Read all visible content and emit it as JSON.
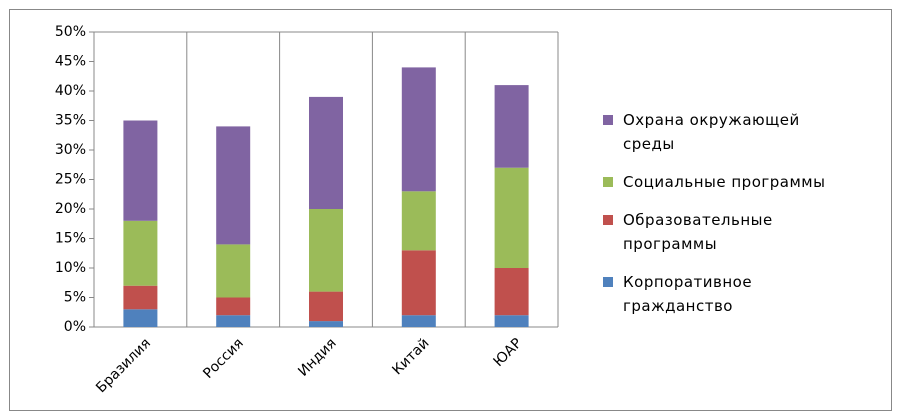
{
  "chart_data": {
    "type": "stacked_bar",
    "categories": [
      "Бразилия",
      "Россия",
      "Индия",
      "Китай",
      "ЮАР"
    ],
    "series": [
      {
        "name": "Корпоративное гражданство",
        "color": "#4f81bd",
        "values": [
          3,
          2,
          1,
          2,
          2
        ]
      },
      {
        "name": "Образовательные программы",
        "color": "#c0504d",
        "values": [
          4,
          3,
          5,
          11,
          8
        ]
      },
      {
        "name": "Социальные программы",
        "color": "#9bbb59",
        "values": [
          11,
          9,
          14,
          10,
          17
        ]
      },
      {
        "name": "Охрана окружающей среды",
        "color": "#8064a2",
        "values": [
          17,
          20,
          19,
          21,
          14
        ]
      }
    ],
    "ylim": [
      0,
      50
    ],
    "yticks": [
      {
        "value": 0,
        "label": "0%"
      },
      {
        "value": 5,
        "label": "5%"
      },
      {
        "value": 10,
        "label": "10%"
      },
      {
        "value": 15,
        "label": "15%"
      },
      {
        "value": 20,
        "label": "20%"
      },
      {
        "value": 25,
        "label": "25%"
      },
      {
        "value": 30,
        "label": "30%"
      },
      {
        "value": 35,
        "label": "35%"
      },
      {
        "value": 40,
        "label": "40%"
      },
      {
        "value": 45,
        "label": "45%"
      },
      {
        "value": 50,
        "label": "50%"
      }
    ],
    "legend": "right"
  }
}
